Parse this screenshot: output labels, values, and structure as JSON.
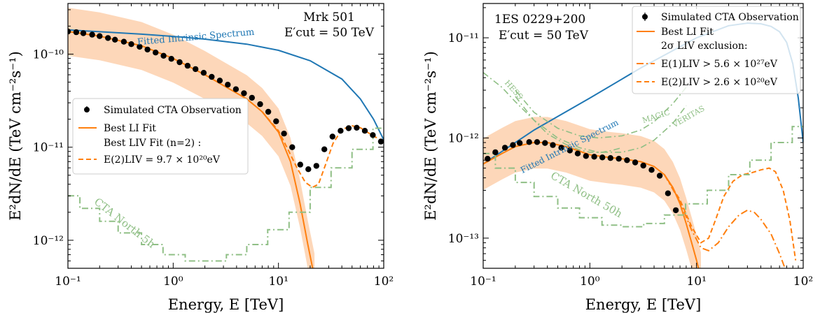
{
  "chart_data": [
    {
      "type": "line",
      "source": "Mrk 501",
      "cut": "E′cut = 50 TeV",
      "xlabel": "Energy, E [TeV]",
      "ylabel": "E²dN/dE (TeV cm⁻²s⁻¹)",
      "xscale": "log",
      "yscale": "log",
      "xlim": [
        0.1,
        100
      ],
      "ylim": [
        5e-13,
        3.5e-10
      ],
      "xticks": [
        "10⁻¹",
        "10⁰",
        "10¹",
        "10²"
      ],
      "yticks": [
        "10⁻¹²",
        "10⁻¹¹",
        "10⁻¹⁰"
      ],
      "legend_position": "center-left",
      "legend": [
        "Simulated CTA Observation",
        "Best LI Fit",
        "Best LIV Fit (n=2) :",
        "E(2)LIV = 9.7 × 10²⁰eV"
      ],
      "annotations": [
        "Fitted Intrinsic Spectrum",
        "CTA North 5h"
      ],
      "colors": {
        "intrinsic": "#1f77b4",
        "fit": "#ff7f0e",
        "band": "#fdd0ad",
        "sensitivity": "#8fbf85",
        "points": "#000000"
      },
      "series": [
        {
          "name": "Simulated CTA Observation",
          "style": "points",
          "x": [
            0.1,
            0.12,
            0.14,
            0.17,
            0.2,
            0.24,
            0.28,
            0.34,
            0.4,
            0.48,
            0.57,
            0.68,
            0.81,
            0.96,
            1.15,
            1.37,
            1.63,
            1.95,
            2.32,
            2.77,
            3.3,
            3.94,
            4.7,
            5.6,
            6.7,
            8.0,
            9.5,
            11.3,
            13.5,
            16.1,
            19.2,
            22.9,
            27.3,
            32.6,
            38.9,
            46.4,
            55.4,
            66.1,
            78.8,
            94.0
          ],
          "y": [
            1.75e-10,
            1.72e-10,
            1.68e-10,
            1.62e-10,
            1.56e-10,
            1.49e-10,
            1.43e-10,
            1.36e-10,
            1.28e-10,
            1.2e-10,
            1.12e-10,
            1.04e-10,
            9.6e-11,
            8.9e-11,
            8.2e-11,
            7.5e-11,
            6.9e-11,
            6.3e-11,
            5.7e-11,
            5.2e-11,
            4.7e-11,
            4.2e-11,
            3.8e-11,
            3.4e-11,
            2.9e-11,
            2.4e-11,
            1.9e-11,
            1.4e-11,
            1e-11,
            6.5e-12,
            5.8e-12,
            6.3e-12,
            9.5e-12,
            1.3e-11,
            1.5e-11,
            1.6e-11,
            1.62e-11,
            1.5e-11,
            1.35e-11,
            1.15e-11
          ]
        },
        {
          "name": "Fitted Intrinsic Spectrum",
          "style": "line",
          "x": [
            0.1,
            0.2,
            0.5,
            1,
            2,
            5,
            10,
            20,
            40,
            60,
            80,
            100
          ],
          "y": [
            1.82e-10,
            1.74e-10,
            1.64e-10,
            1.55e-10,
            1.45e-10,
            1.28e-10,
            1.1e-10,
            8.5e-11,
            5.4e-11,
            3.3e-11,
            2e-11,
            1.2e-11
          ]
        },
        {
          "name": "Best LI Fit",
          "style": "line",
          "x": [
            0.1,
            0.2,
            0.5,
            1,
            2,
            3,
            5,
            7,
            10,
            13,
            16,
            19,
            22
          ],
          "y": [
            1.75e-10,
            1.56e-10,
            1.23e-10,
            9e-11,
            6e-11,
            4.6e-11,
            3.3e-11,
            2.4e-11,
            1.45e-11,
            7e-12,
            2.5e-12,
            9e-13,
            4e-13
          ]
        },
        {
          "name": "Best LIV Fit (n=2)",
          "style": "dashed",
          "x": [
            7,
            10,
            12,
            15,
            18,
            21,
            24,
            28,
            33,
            40,
            50,
            60,
            75,
            95
          ],
          "y": [
            2.4e-11,
            1.5e-11,
            1e-11,
            6e-12,
            4.2e-12,
            3.7e-12,
            4e-12,
            6.5e-12,
            1.1e-11,
            1.55e-11,
            1.7e-11,
            1.62e-11,
            1.38e-11,
            1.18e-11
          ]
        },
        {
          "name": "CTA North 5h",
          "style": "dashdot-steps",
          "x": [
            0.1,
            0.13,
            0.2,
            0.3,
            0.5,
            0.8,
            1.3,
            2.0,
            3.2,
            5.0,
            7.9,
            12.6,
            20,
            31.6,
            50,
            79,
            100
          ],
          "y": [
            3e-12,
            2.2e-12,
            1.6e-12,
            1.2e-12,
            9e-13,
            7e-13,
            6e-13,
            6e-13,
            7e-13,
            9e-13,
            1.3e-12,
            2e-12,
            3.7e-12,
            6e-12,
            9.5e-12,
            1.6e-11,
            1.6e-11
          ]
        }
      ]
    },
    {
      "type": "line",
      "source": "1ES 0229+200",
      "cut": "E′cut = 50 TeV",
      "xlabel": "Energy, E [TeV]",
      "ylabel": "E²dN/dE (TeV cm⁻²s⁻¹)",
      "xscale": "log",
      "yscale": "log",
      "xlim": [
        0.1,
        100
      ],
      "ylim": [
        5e-14,
        2.2e-11
      ],
      "xticks": [
        "10⁻¹",
        "10⁰",
        "10¹",
        "10²"
      ],
      "yticks": [
        "10⁻¹³",
        "10⁻¹²",
        "10⁻¹¹"
      ],
      "legend_position": "top-right",
      "legend": [
        "Simulated CTA Observation",
        "Best LI Fit",
        "2σ LIV exclusion:",
        "E(1)LIV > 5.6 × 10²⁷eV",
        "E(2)LIV > 2.6 × 10²⁰eV"
      ],
      "annotations": [
        "Fitted Intrinsic Spectrum",
        "CTA North 50h",
        "HESS",
        "MAGIC",
        "VERITAS"
      ],
      "colors": {
        "intrinsic": "#1f77b4",
        "fit": "#ff7f0e",
        "band": "#fdd0ad",
        "sensitivity": "#8fbf85",
        "points": "#000000"
      },
      "series": [
        {
          "name": "Simulated CTA Observation",
          "style": "points",
          "x": [
            0.11,
            0.13,
            0.16,
            0.19,
            0.22,
            0.27,
            0.32,
            0.38,
            0.45,
            0.54,
            0.65,
            0.77,
            0.92,
            1.1,
            1.31,
            1.56,
            1.87,
            2.23,
            2.66,
            3.17,
            3.79,
            4.52,
            5.4,
            6.4
          ],
          "y": [
            6.2e-13,
            7.2e-13,
            8e-13,
            8.5e-13,
            8.9e-13,
            9.1e-13,
            9.1e-13,
            8.9e-13,
            8.5e-13,
            8e-13,
            7.5e-13,
            7e-13,
            6.6e-13,
            6.5e-13,
            6.4e-13,
            6.3e-13,
            6.2e-13,
            6e-13,
            5.7e-13,
            5.3e-13,
            4.8e-13,
            4.2e-13,
            2.8e-13,
            1.9e-13
          ]
        },
        {
          "name": "Fitted Intrinsic Spectrum",
          "style": "line",
          "x": [
            0.1,
            0.3,
            1,
            3,
            10,
            20,
            30,
            40,
            50,
            60,
            70,
            80,
            90,
            100
          ],
          "y": [
            5.5e-13,
            1.2e-12,
            2.5e-12,
            5e-12,
            1e-11,
            1.32e-11,
            1.4e-11,
            1.38e-11,
            1.3e-11,
            1.15e-11,
            9e-12,
            5.5e-12,
            2.5e-12,
            9e-13
          ]
        },
        {
          "name": "Best LI Fit",
          "style": "line",
          "x": [
            0.1,
            0.15,
            0.2,
            0.3,
            0.4,
            0.6,
            1,
            1.5,
            2,
            3,
            4,
            5,
            6,
            7,
            8,
            9,
            10,
            11
          ],
          "y": [
            5.5e-13,
            7e-13,
            8.2e-13,
            9e-13,
            9e-13,
            8.2e-13,
            6.8e-13,
            6.4e-13,
            6.2e-13,
            5.8e-13,
            5.2e-13,
            4.3e-13,
            3.2e-13,
            2.2e-13,
            1.4e-13,
            9e-14,
            6e-14,
            4e-14
          ]
        },
        {
          "name": "E(1)LIV > 5.6 × 10²⁷eV",
          "style": "dashdot",
          "x": [
            5,
            7,
            9,
            11,
            13,
            16,
            20,
            25,
            30,
            35,
            40,
            50,
            60,
            70,
            80
          ],
          "y": [
            4.3e-13,
            2.3e-13,
            1.2e-13,
            8e-14,
            7.5e-14,
            9e-14,
            1.3e-13,
            1.7e-13,
            1.9e-13,
            1.8e-13,
            1.55e-13,
            1.1e-13,
            7e-14,
            4.5e-14,
            3e-14
          ]
        },
        {
          "name": "E(2)LIV > 2.6 × 10²⁰eV",
          "style": "dashed",
          "x": [
            5,
            7,
            9,
            11,
            13,
            15,
            18,
            22,
            27,
            33,
            40,
            48,
            55,
            65,
            75,
            85
          ],
          "y": [
            4.3e-13,
            2.4e-13,
            1.3e-13,
            9e-14,
            1e-13,
            1.5e-13,
            2.6e-13,
            3.7e-13,
            4.3e-13,
            4.5e-13,
            4.8e-13,
            5e-13,
            4.6e-13,
            3e-13,
            1.5e-13,
            6e-14
          ]
        },
        {
          "name": "CTA North 50h",
          "style": "dashdot-steps",
          "x": [
            0.1,
            0.13,
            0.2,
            0.3,
            0.5,
            0.8,
            1.3,
            2.0,
            3.2,
            5.0,
            7.9,
            12.6,
            20,
            31.6,
            50,
            79,
            100
          ],
          "y": [
            7e-13,
            5e-13,
            3.6e-13,
            2.6e-13,
            2e-13,
            1.6e-13,
            1.35e-13,
            1.3e-13,
            1.4e-13,
            1.7e-13,
            2.2e-13,
            3e-13,
            4.3e-13,
            6e-13,
            9e-13,
            1.3e-12,
            1.3e-12
          ]
        },
        {
          "name": "HESS",
          "style": "dashdot",
          "x": [
            0.1,
            0.15,
            0.2,
            0.3,
            0.4,
            0.6,
            0.8,
            1.0,
            1.3,
            1.6,
            2.0
          ],
          "y": [
            4.5e-12,
            3.2e-12,
            2.3e-12,
            1.5e-12,
            1.1e-12,
            8.6e-13,
            7.6e-13,
            7.2e-13,
            7.2e-13,
            7.5e-13,
            8e-13
          ]
        },
        {
          "name": "MAGIC",
          "style": "dashdot",
          "x": [
            0.2,
            0.3,
            0.5,
            0.8,
            1.2,
            2,
            3,
            4,
            6,
            8
          ],
          "y": [
            3e-12,
            1.8e-12,
            1.25e-12,
            1.05e-12,
            1e-12,
            1.05e-12,
            1.2e-12,
            1.45e-12,
            2.2e-12,
            3.2e-12
          ]
        },
        {
          "name": "VERITAS",
          "style": "dashdot",
          "x": [
            0.2,
            0.3,
            0.5,
            0.8,
            1.2,
            2,
            3,
            4,
            6,
            8
          ],
          "y": [
            2.6e-12,
            1.5e-12,
            1e-12,
            8e-13,
            7.2e-13,
            7.2e-13,
            8e-13,
            9.5e-13,
            1.4e-12,
            2.1e-12
          ]
        }
      ]
    }
  ]
}
